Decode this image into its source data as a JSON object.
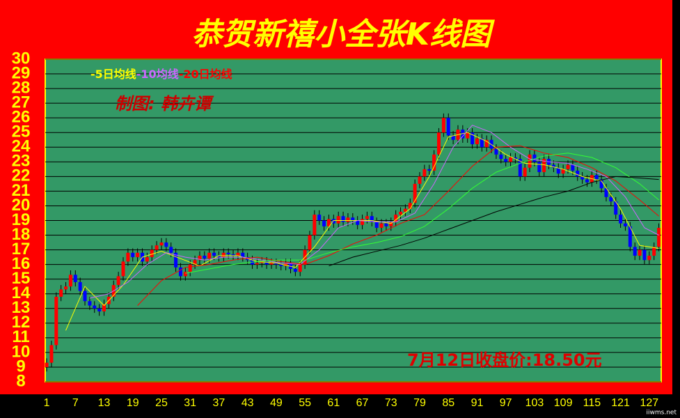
{
  "chart_data": {
    "type": "candlestick",
    "title": "恭贺新禧小全张K线图",
    "annotations": [
      "制图: 韩卉谭",
      "7月12日收盘价:18.50元"
    ],
    "watermark": "iiwms.net",
    "x": [
      1,
      2,
      3,
      4,
      5,
      6,
      7,
      8,
      9,
      10,
      11,
      12,
      13,
      14,
      15,
      16,
      17,
      18,
      19,
      20,
      21,
      22,
      23,
      24,
      25,
      26,
      27,
      28,
      29,
      30,
      31,
      32,
      33,
      34,
      35,
      36,
      37,
      38,
      39,
      40,
      41,
      42,
      43,
      44,
      45,
      46,
      47,
      48,
      49,
      50,
      51,
      52,
      53,
      54,
      55,
      56,
      57,
      58,
      59,
      60,
      61,
      62,
      63,
      64,
      65,
      66,
      67,
      68,
      69,
      70,
      71,
      72,
      73,
      74,
      75,
      76,
      77,
      78,
      79,
      80,
      81,
      82,
      83,
      84,
      85,
      86,
      87,
      88,
      89,
      90,
      91,
      92,
      93,
      94,
      95,
      96,
      97,
      98,
      99,
      100,
      101,
      102,
      103,
      104,
      105,
      106,
      107,
      108,
      109,
      110,
      111,
      112,
      113,
      114,
      115,
      116,
      117,
      118,
      119,
      120,
      121,
      122,
      123,
      124,
      125,
      126,
      127,
      128,
      129
    ],
    "open": [
      9.0,
      9.3,
      10.5,
      13.8,
      14.3,
      14.5,
      15.3,
      14.8,
      14.2,
      13.5,
      13.2,
      13.0,
      12.8,
      13.3,
      13.8,
      14.6,
      15.2,
      16.2,
      16.8,
      16.5,
      16.8,
      16.2,
      16.5,
      17.0,
      17.3,
      17.5,
      17.2,
      16.8,
      15.8,
      15.2,
      15.5,
      16.0,
      16.3,
      16.6,
      16.4,
      16.8,
      16.6,
      16.5,
      16.8,
      16.7,
      16.6,
      16.8,
      16.5,
      16.3,
      16.0,
      16.1,
      16.2,
      16.0,
      16.1,
      16.0,
      15.9,
      16.1,
      15.7,
      15.5,
      16.0,
      17.0,
      18.0,
      19.4,
      19.0,
      18.6,
      19.1,
      18.8,
      19.3,
      18.9,
      19.2,
      19.0,
      18.7,
      19.1,
      19.3,
      18.9,
      18.5,
      18.8,
      18.6,
      18.9,
      19.4,
      19.6,
      19.8,
      20.2,
      21.5,
      22.0,
      22.5,
      22.4,
      23.5,
      25.0,
      26.0,
      24.8,
      24.5,
      25.2,
      24.6,
      25.0,
      24.2,
      24.6,
      24.0,
      24.5,
      23.9,
      23.5,
      23.2,
      23.0,
      23.3,
      23.2,
      22.0,
      22.6,
      23.5,
      23.0,
      22.3,
      23.2,
      22.8,
      22.6,
      22.2,
      22.5,
      22.8,
      22.4,
      22.0,
      21.8,
      21.6,
      22.1,
      21.8,
      21.2,
      20.6,
      20.3,
      19.4,
      18.8,
      18.6,
      17.2,
      16.6,
      17.0,
      16.3,
      16.6,
      17.2
    ],
    "high": [
      9.6,
      10.8,
      14.1,
      14.6,
      14.8,
      15.6,
      15.6,
      15.1,
      14.5,
      13.8,
      13.5,
      13.3,
      13.6,
      14.1,
      14.9,
      15.5,
      16.5,
      17.1,
      17.1,
      17.1,
      17.1,
      16.8,
      17.3,
      17.6,
      17.8,
      17.8,
      17.5,
      17.1,
      16.1,
      15.8,
      16.3,
      16.6,
      16.9,
      16.9,
      17.1,
      17.1,
      16.9,
      17.1,
      17.1,
      17.0,
      17.1,
      17.1,
      16.8,
      16.6,
      16.4,
      16.5,
      16.5,
      16.4,
      16.4,
      16.3,
      16.4,
      16.4,
      16.0,
      16.3,
      17.3,
      18.3,
      19.7,
      19.7,
      19.3,
      19.4,
      19.4,
      19.6,
      19.6,
      19.5,
      19.5,
      19.3,
      19.4,
      19.6,
      19.6,
      19.2,
      19.1,
      19.1,
      19.2,
      19.7,
      19.9,
      20.1,
      20.5,
      21.8,
      22.3,
      22.8,
      22.8,
      23.8,
      25.3,
      26.3,
      26.3,
      25.1,
      25.5,
      25.5,
      25.3,
      25.3,
      24.9,
      24.9,
      24.8,
      24.8,
      24.2,
      23.8,
      23.5,
      23.6,
      23.6,
      23.5,
      22.9,
      23.8,
      23.8,
      23.3,
      23.5,
      23.5,
      23.1,
      22.9,
      22.8,
      23.1,
      23.1,
      22.7,
      22.3,
      22.1,
      22.4,
      22.4,
      22.1,
      21.5,
      20.9,
      20.6,
      19.7,
      19.1,
      18.9,
      17.5,
      17.3,
      17.3,
      16.9,
      17.5,
      18.8
    ],
    "low": [
      8.7,
      9.0,
      10.2,
      13.5,
      14.0,
      14.2,
      14.5,
      13.9,
      13.2,
      12.9,
      12.7,
      12.5,
      12.5,
      13.0,
      13.5,
      14.3,
      14.9,
      15.9,
      16.2,
      16.2,
      15.9,
      15.9,
      16.2,
      16.7,
      17.0,
      16.9,
      16.5,
      15.5,
      14.9,
      14.9,
      15.2,
      15.7,
      16.0,
      16.1,
      16.1,
      16.3,
      16.2,
      16.2,
      16.4,
      16.3,
      16.3,
      16.2,
      16.0,
      15.7,
      15.7,
      15.8,
      15.7,
      15.7,
      15.7,
      15.6,
      15.6,
      15.4,
      15.2,
      15.2,
      15.7,
      16.7,
      17.7,
      18.7,
      18.3,
      18.3,
      18.5,
      18.5,
      18.6,
      18.6,
      18.7,
      18.4,
      18.4,
      18.8,
      18.6,
      18.2,
      18.2,
      18.3,
      18.3,
      18.6,
      19.1,
      19.3,
      19.5,
      19.9,
      21.2,
      21.7,
      22.1,
      22.1,
      23.2,
      24.7,
      24.5,
      24.2,
      24.2,
      24.3,
      24.3,
      23.9,
      23.9,
      23.7,
      23.7,
      23.6,
      23.2,
      22.9,
      22.7,
      22.7,
      22.9,
      21.7,
      21.7,
      22.3,
      22.7,
      22.0,
      22.0,
      22.5,
      22.3,
      21.9,
      21.9,
      22.2,
      22.1,
      21.7,
      21.5,
      21.3,
      21.3,
      21.5,
      20.9,
      20.3,
      20.0,
      19.1,
      18.5,
      18.3,
      16.9,
      16.3,
      16.3,
      16.0,
      16.0,
      16.3,
      16.9
    ],
    "close": [
      9.3,
      10.5,
      13.8,
      14.3,
      14.5,
      15.3,
      14.8,
      14.2,
      13.5,
      13.2,
      13.0,
      12.8,
      13.3,
      13.8,
      14.6,
      15.2,
      16.2,
      16.8,
      16.5,
      16.8,
      16.2,
      16.5,
      17.0,
      17.3,
      17.5,
      17.2,
      16.8,
      15.8,
      15.2,
      15.5,
      16.0,
      16.3,
      16.6,
      16.4,
      16.8,
      16.6,
      16.5,
      16.8,
      16.7,
      16.6,
      16.8,
      16.5,
      16.3,
      16.0,
      16.1,
      16.2,
      16.0,
      16.1,
      16.0,
      15.9,
      16.1,
      15.7,
      15.5,
      16.0,
      17.0,
      18.0,
      19.4,
      19.0,
      18.6,
      19.1,
      18.8,
      19.3,
      18.9,
      19.2,
      19.0,
      18.7,
      19.1,
      19.3,
      18.9,
      18.5,
      18.8,
      18.6,
      18.9,
      19.4,
      19.6,
      19.8,
      20.2,
      21.5,
      22.0,
      22.5,
      22.4,
      23.5,
      25.0,
      26.0,
      24.8,
      24.5,
      25.2,
      24.6,
      25.0,
      24.2,
      24.6,
      24.0,
      24.5,
      23.9,
      23.5,
      23.2,
      23.0,
      23.3,
      23.2,
      22.0,
      22.6,
      23.5,
      23.0,
      22.3,
      23.2,
      22.8,
      22.6,
      22.2,
      22.5,
      22.8,
      22.4,
      22.0,
      21.8,
      21.6,
      22.1,
      21.8,
      21.2,
      20.6,
      20.3,
      19.4,
      18.8,
      18.6,
      17.2,
      16.6,
      17.0,
      16.3,
      16.6,
      17.2,
      18.5
    ],
    "up_color": "#ff0000",
    "down_color": "#0000ff",
    "wick_color": "#000000",
    "series": [
      {
        "name": "-5日均线",
        "color": "#ffff00",
        "x": [
          5,
          9,
          13,
          17,
          21,
          25,
          29,
          33,
          37,
          41,
          45,
          49,
          53,
          57,
          61,
          65,
          69,
          73,
          77,
          81,
          85,
          89,
          93,
          97,
          101,
          105,
          109,
          113,
          117,
          121,
          125,
          129
        ],
        "values": [
          11.5,
          14.5,
          13.2,
          14.6,
          16.5,
          16.9,
          16.4,
          15.9,
          16.6,
          16.6,
          16.2,
          16.1,
          15.8,
          17.2,
          19.0,
          19.0,
          19.0,
          18.8,
          19.8,
          22.0,
          24.7,
          25.0,
          24.4,
          23.5,
          22.9,
          22.8,
          22.5,
          22.0,
          21.7,
          19.8,
          17.3,
          17.1
        ]
      },
      {
        "name": "-10均线",
        "color": "#cc66ff",
        "x": [
          10,
          14,
          18,
          22,
          26,
          30,
          34,
          38,
          42,
          46,
          50,
          54,
          58,
          62,
          66,
          70,
          74,
          78,
          82,
          86,
          90,
          94,
          98,
          102,
          106,
          110,
          114,
          118,
          122,
          126,
          129
        ],
        "values": [
          13.7,
          14.0,
          14.8,
          16.0,
          16.8,
          16.5,
          16.3,
          16.5,
          16.5,
          16.3,
          16.1,
          16.0,
          17.0,
          18.5,
          19.0,
          18.9,
          18.9,
          19.5,
          21.5,
          24.0,
          25.5,
          25.0,
          24.0,
          23.2,
          23.0,
          22.9,
          22.5,
          22.0,
          20.6,
          18.5,
          18.0
        ]
      },
      {
        "name": "-20日均线",
        "color": "#ff0000",
        "x": [
          20,
          25,
          30,
          35,
          40,
          45,
          50,
          55,
          60,
          65,
          70,
          75,
          80,
          85,
          90,
          95,
          100,
          105,
          110,
          115,
          120,
          125,
          129
        ],
        "values": [
          13.2,
          14.9,
          15.8,
          16.0,
          16.3,
          16.5,
          16.2,
          16.0,
          16.6,
          17.4,
          18.0,
          18.8,
          19.4,
          21.0,
          22.7,
          24.0,
          24.1,
          23.6,
          23.3,
          22.6,
          21.7,
          20.4,
          19.3
        ]
      },
      {
        "color": "#33ff33",
        "x": [
          30,
          35,
          40,
          45,
          50,
          55,
          60,
          65,
          70,
          75,
          80,
          85,
          90,
          95,
          100,
          105,
          110,
          115,
          120,
          125,
          129
        ],
        "values": [
          15.4,
          15.7,
          16.0,
          16.2,
          16.3,
          16.3,
          16.8,
          17.2,
          17.5,
          17.9,
          18.6,
          19.8,
          21.2,
          22.3,
          22.9,
          23.4,
          23.6,
          23.3,
          22.6,
          21.5,
          20.4
        ]
      },
      {
        "color": "#000000",
        "x": [
          60,
          65,
          70,
          75,
          80,
          85,
          90,
          95,
          100,
          105,
          110,
          115,
          120,
          125,
          129
        ],
        "values": [
          15.9,
          16.5,
          16.9,
          17.3,
          17.8,
          18.4,
          19.0,
          19.6,
          20.1,
          20.6,
          21.0,
          21.6,
          22.0,
          21.9,
          21.8
        ]
      }
    ],
    "legend": "top-left",
    "xlim": [
      0.7,
      129.5
    ],
    "xticks": [
      1,
      7,
      13,
      19,
      25,
      31,
      37,
      43,
      49,
      55,
      61,
      67,
      73,
      79,
      85,
      91,
      97,
      103,
      109,
      115,
      121,
      127
    ],
    "ylim": [
      8,
      30
    ],
    "yticks": [
      8,
      9,
      10,
      11,
      12,
      13,
      14,
      15,
      16,
      17,
      18,
      19,
      20,
      21,
      22,
      23,
      24,
      25,
      26,
      27,
      28,
      29,
      30
    ],
    "grid": true
  }
}
